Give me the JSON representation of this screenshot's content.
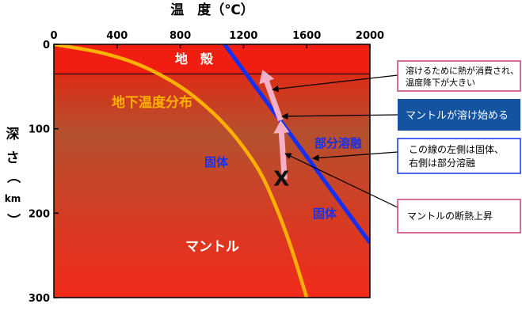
{
  "x_axis": {
    "title": "温　度（℃）",
    "ticks": [
      {
        "label": "0",
        "value": 0
      },
      {
        "label": "400",
        "value": 400
      },
      {
        "label": "800",
        "value": 800
      },
      {
        "label": "1200",
        "value": 1200
      },
      {
        "label": "1600",
        "value": 1600
      },
      {
        "label": "2000",
        "value": 2000
      }
    ],
    "range": [
      0,
      2000
    ]
  },
  "y_axis": {
    "title_chars": [
      "深",
      "さ",
      "（",
      "km",
      "）"
    ],
    "ticks": [
      {
        "label": "0",
        "value": 0
      },
      {
        "label": "100",
        "value": 100
      },
      {
        "label": "200",
        "value": 200
      },
      {
        "label": "300",
        "value": 300
      }
    ],
    "range": [
      0,
      300
    ]
  },
  "regions": {
    "crust_label": "地　殻",
    "crust_bottom_depth": 35,
    "mantle_label": "マントル"
  },
  "geotherm": {
    "label": "地下温度分布",
    "color": "#FFB000",
    "points": [
      [
        0,
        0
      ],
      [
        300,
        10
      ],
      [
        550,
        25
      ],
      [
        800,
        50
      ],
      [
        1000,
        80
      ],
      [
        1150,
        110
      ],
      [
        1300,
        150
      ],
      [
        1400,
        190
      ],
      [
        1500,
        240
      ],
      [
        1600,
        300
      ]
    ]
  },
  "solidus": {
    "label_partial": "部分溶融",
    "label_solid_left": "固体",
    "label_solid_right": "固体",
    "color": "#1530F0",
    "points": [
      [
        1080,
        0
      ],
      [
        2000,
        235
      ]
    ]
  },
  "ascent": {
    "marker": "X",
    "color": "#F5B0C8",
    "start": [
      1460,
      160
    ],
    "mid": [
      1435,
      90
    ],
    "end": [
      1320,
      30
    ]
  },
  "callouts": [
    {
      "id": "heat-consumed",
      "lines": [
        "溶けるために熱が消費され、",
        "温度降下が大きい"
      ],
      "style": "pink"
    },
    {
      "id": "mantle-melting",
      "lines": [
        "マントルが溶け始める"
      ],
      "style": "filled-blue"
    },
    {
      "id": "line-meaning",
      "lines": [
        "この線の左側は固体、",
        "右側は部分溶融"
      ],
      "style": "blue"
    },
    {
      "id": "adiabatic-ascent",
      "lines": [
        "マントルの断熱上昇"
      ],
      "style": "pink"
    }
  ],
  "colors": {
    "gradient_top": "#F11A0A",
    "gradient_mid": "#B5502E",
    "gradient_bottom": "#F22A1A",
    "crust": "#EF1E10",
    "pink_border": "#C8407A",
    "blue_border": "#1530F0",
    "blue_fill": "#1353A0"
  }
}
